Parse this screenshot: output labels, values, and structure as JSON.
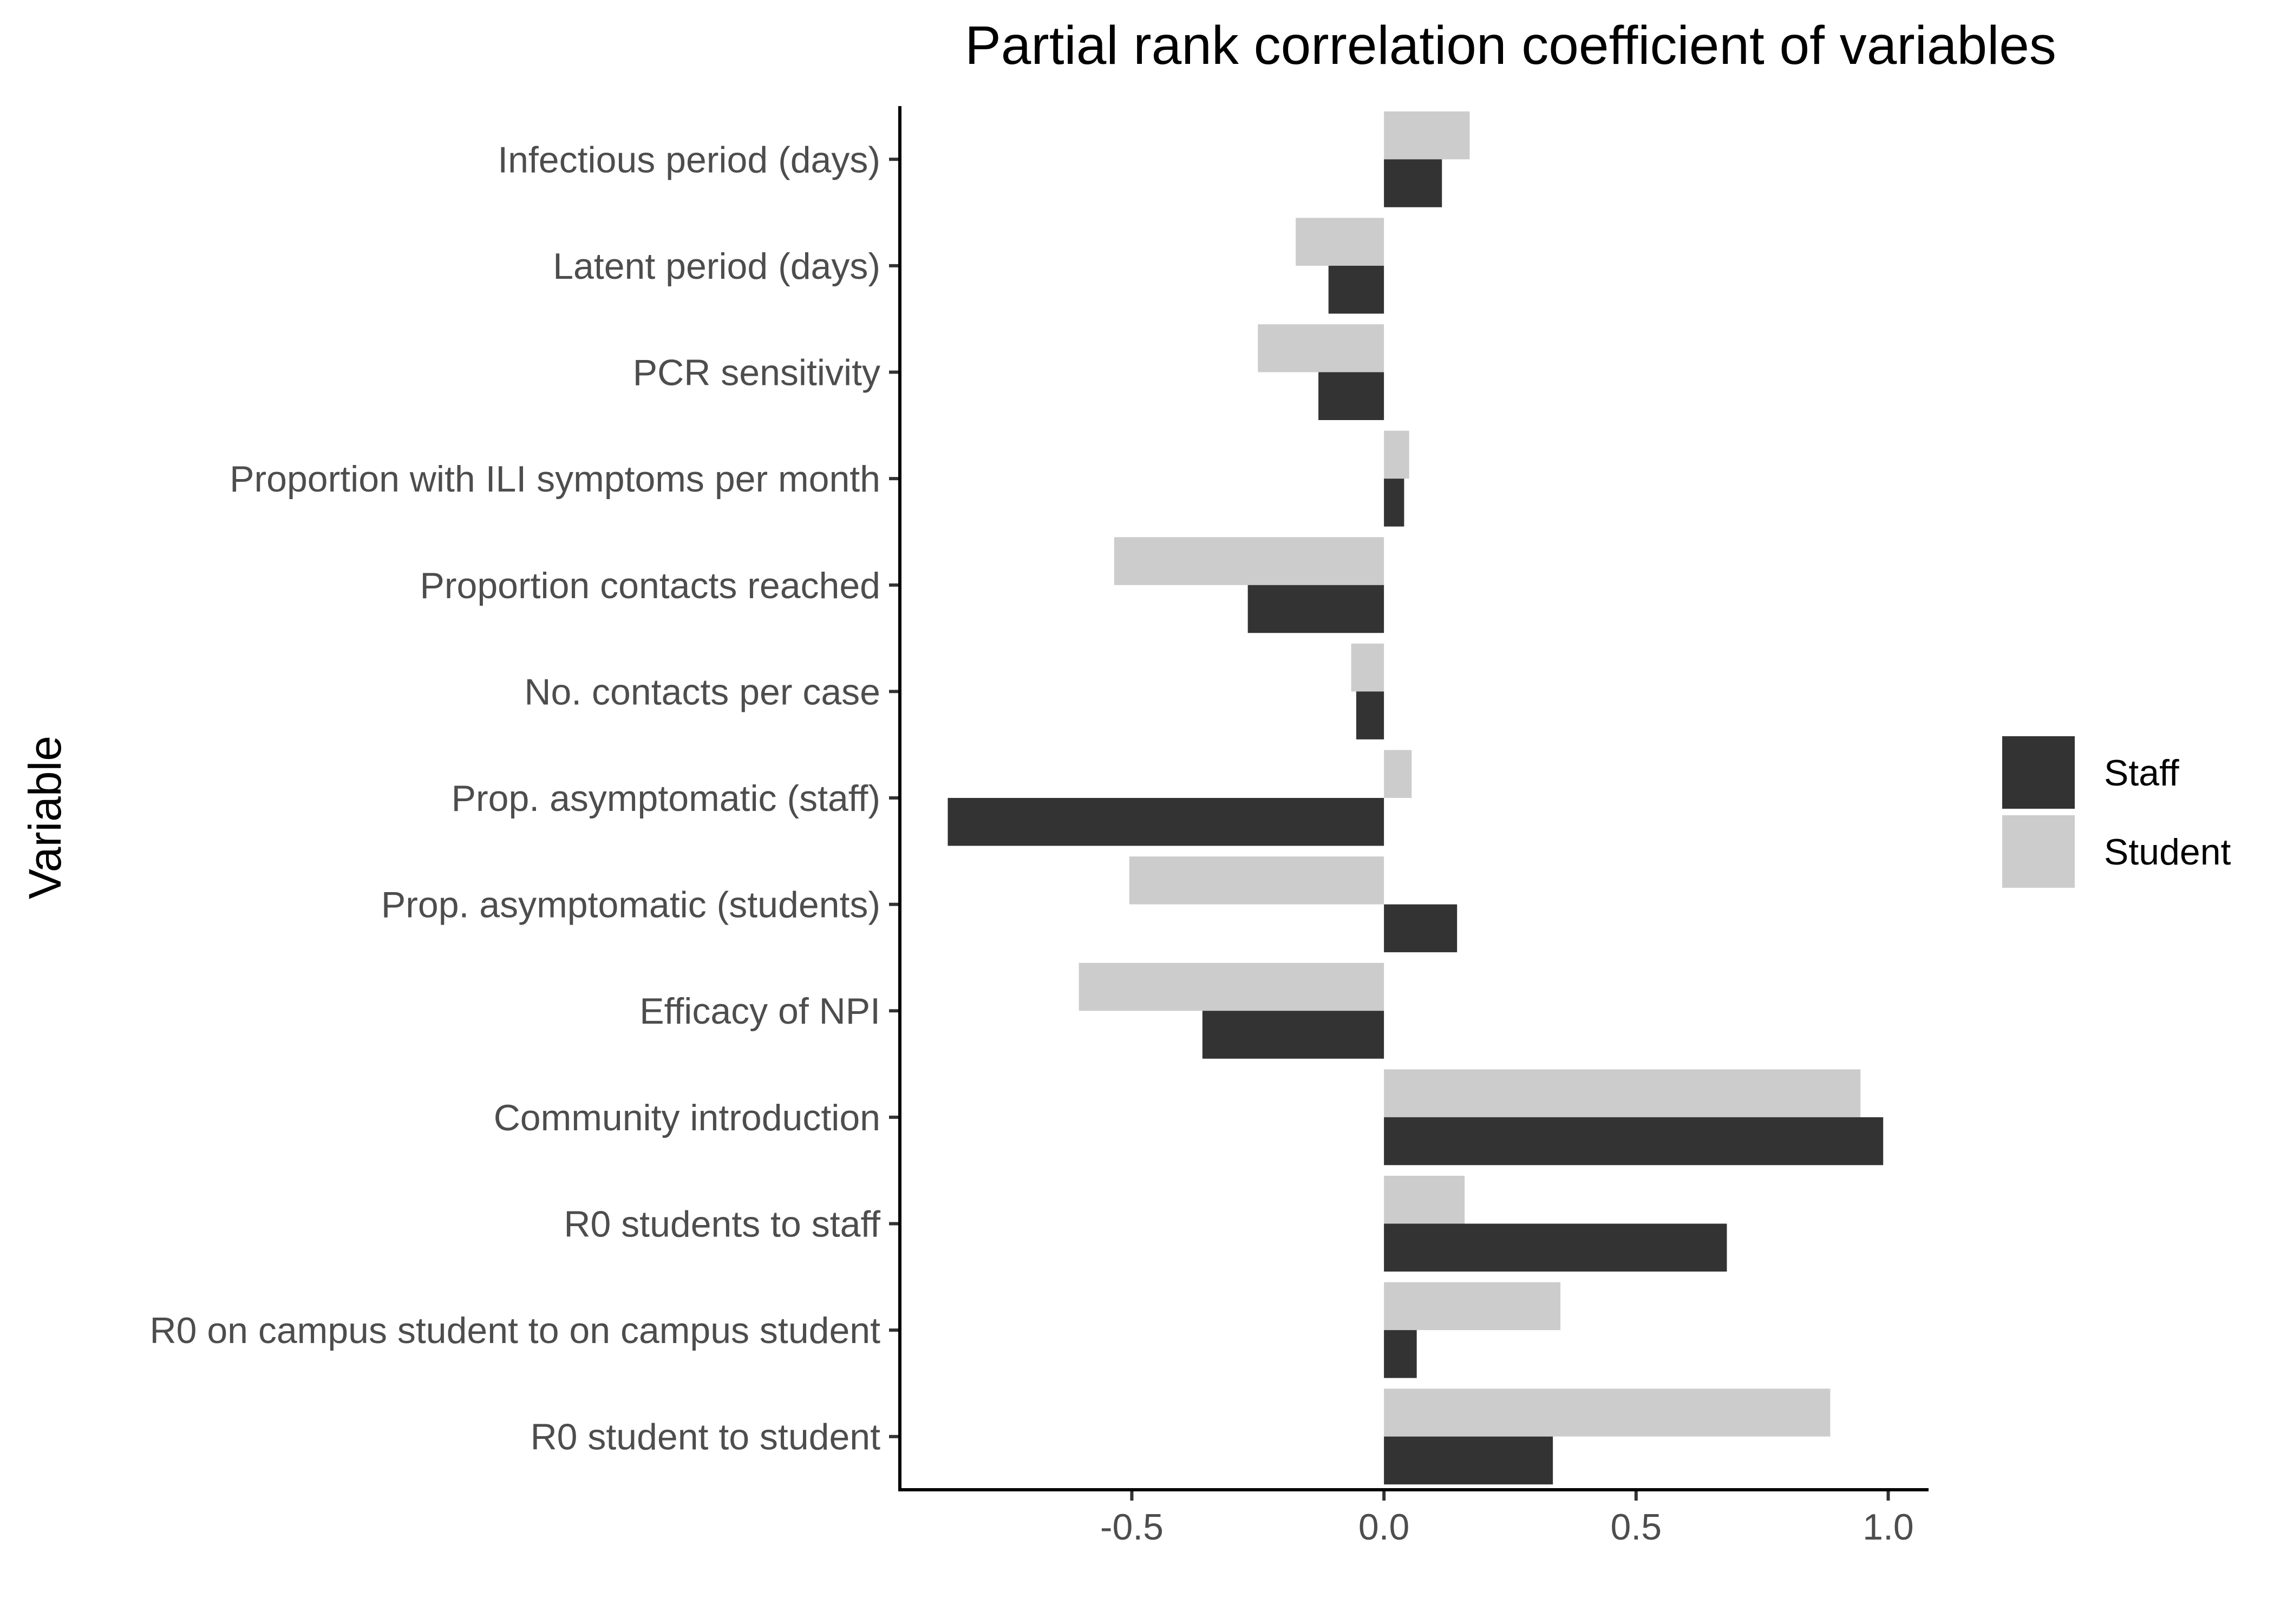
{
  "chart_data": {
    "type": "bar",
    "orientation": "horizontal",
    "title": "Partial rank correlation coefficient of variables",
    "xlabel": "",
    "ylabel": "Variable",
    "xlim": [
      -0.96,
      1.08
    ],
    "xticks": [
      -0.5,
      0.0,
      0.5,
      1.0
    ],
    "xtick_labels": [
      "-0.5",
      "0.0",
      "0.5",
      "1.0"
    ],
    "grid": false,
    "legend_position": "right",
    "categories": [
      "Infectious period (days)",
      "Latent period (days)",
      "PCR sensitivity",
      "Proportion with ILI symptoms per month",
      "Proportion contacts reached",
      "No. contacts per case",
      "Prop. asymptomatic (staff)",
      "Prop. asymptomatic (students)",
      "Efficacy of NPI",
      "Community introduction",
      "R0 students to staff",
      "R0 on campus student to on campus student",
      "R0 student to student"
    ],
    "series": [
      {
        "name": "Staff",
        "color": "#333333",
        "values": [
          0.115,
          -0.11,
          -0.13,
          0.04,
          -0.27,
          -0.055,
          -0.865,
          0.145,
          -0.36,
          0.99,
          0.68,
          0.065,
          0.335
        ]
      },
      {
        "name": "Student",
        "color": "#cccccc",
        "values": [
          0.17,
          -0.175,
          -0.25,
          0.05,
          -0.535,
          -0.065,
          0.055,
          -0.505,
          -0.605,
          0.945,
          0.16,
          0.35,
          0.885
        ]
      }
    ]
  }
}
